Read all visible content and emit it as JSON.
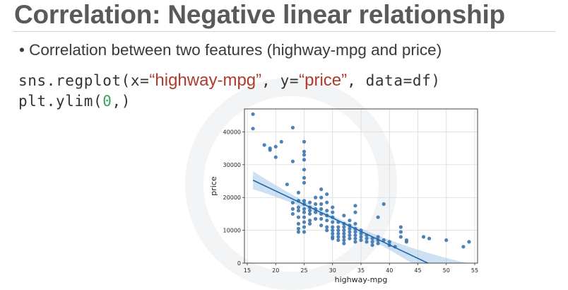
{
  "slide": {
    "title": "Correlation: Negative linear relationship",
    "bullet": "Correlation between two features (highway-mpg and price)",
    "code_line1": {
      "p1": "sns.regplot(x=",
      "s1": "“highway-mpg”",
      "p2": ", y=",
      "s2": "“price”",
      "p3": ", data=df)"
    },
    "code_line2": {
      "p1": "plt.ylim(",
      "n1": "0",
      "p2": ",)"
    }
  },
  "chart_data": {
    "type": "scatter",
    "xlabel": "highway-mpg",
    "ylabel": "price",
    "xlim": [
      14.5,
      55.5
    ],
    "ylim": [
      0,
      47000
    ],
    "xticks": [
      15,
      20,
      25,
      30,
      35,
      40,
      45,
      50,
      55
    ],
    "yticks": [
      0,
      10000,
      20000,
      30000,
      40000
    ],
    "grid": true,
    "point_color": "#3b75af",
    "line_color": "#2166ac",
    "band_color": "#a6c8e8",
    "points": [
      [
        16,
        45400
      ],
      [
        16,
        41000
      ],
      [
        18,
        36000
      ],
      [
        19,
        34500
      ],
      [
        19,
        35000
      ],
      [
        20,
        35500
      ],
      [
        20,
        32300
      ],
      [
        21,
        37000
      ],
      [
        22,
        24000
      ],
      [
        23,
        41300
      ],
      [
        23,
        31000
      ],
      [
        23,
        16500
      ],
      [
        23,
        18400
      ],
      [
        23,
        15000
      ],
      [
        24,
        21500
      ],
      [
        24,
        19000
      ],
      [
        24,
        17000
      ],
      [
        24,
        16000
      ],
      [
        24,
        14000
      ],
      [
        24,
        12000
      ],
      [
        24,
        10500
      ],
      [
        24,
        9500
      ],
      [
        25,
        37000
      ],
      [
        25,
        34000
      ],
      [
        25,
        33000
      ],
      [
        25,
        31500
      ],
      [
        25,
        28500
      ],
      [
        25,
        26000
      ],
      [
        25,
        24500
      ],
      [
        25,
        19000
      ],
      [
        25,
        18000
      ],
      [
        25,
        16500
      ],
      [
        25,
        15500
      ],
      [
        25,
        14000
      ],
      [
        25,
        12500
      ],
      [
        25,
        11000
      ],
      [
        25,
        9500
      ],
      [
        26,
        18500
      ],
      [
        26,
        17000
      ],
      [
        26,
        16000
      ],
      [
        26,
        15000
      ],
      [
        26,
        13000
      ],
      [
        26,
        12000
      ],
      [
        27,
        20000
      ],
      [
        27,
        18000
      ],
      [
        27,
        16500
      ],
      [
        27,
        15500
      ],
      [
        27,
        13500
      ],
      [
        28,
        22500
      ],
      [
        28,
        20000
      ],
      [
        28,
        18000
      ],
      [
        28,
        16500
      ],
      [
        28,
        15000
      ],
      [
        28,
        13500
      ],
      [
        28,
        11500
      ],
      [
        29,
        21000
      ],
      [
        29,
        18500
      ],
      [
        29,
        16000
      ],
      [
        29,
        14500
      ],
      [
        29,
        13000
      ],
      [
        29,
        11000
      ],
      [
        29,
        10000
      ],
      [
        30,
        17000
      ],
      [
        30,
        15500
      ],
      [
        30,
        14000
      ],
      [
        30,
        12500
      ],
      [
        30,
        11000
      ],
      [
        30,
        10000
      ],
      [
        30,
        9000
      ],
      [
        30,
        8000
      ],
      [
        30,
        7500
      ],
      [
        31,
        12500
      ],
      [
        31,
        11000
      ],
      [
        31,
        10000
      ],
      [
        31,
        9000
      ],
      [
        31,
        8000
      ],
      [
        31,
        7000
      ],
      [
        32,
        14500
      ],
      [
        32,
        12000
      ],
      [
        32,
        11000
      ],
      [
        32,
        10000
      ],
      [
        32,
        9000
      ],
      [
        32,
        8000
      ],
      [
        32,
        7000
      ],
      [
        32,
        6000
      ],
      [
        33,
        13000
      ],
      [
        33,
        11500
      ],
      [
        33,
        10500
      ],
      [
        33,
        9500
      ],
      [
        33,
        8500
      ],
      [
        33,
        7500
      ],
      [
        34,
        17500
      ],
      [
        34,
        15500
      ],
      [
        34,
        12000
      ],
      [
        34,
        10500
      ],
      [
        34,
        9500
      ],
      [
        34,
        8500
      ],
      [
        34,
        7500
      ],
      [
        34,
        6500
      ],
      [
        35,
        10000
      ],
      [
        35,
        9000
      ],
      [
        35,
        8000
      ],
      [
        35,
        7000
      ],
      [
        36,
        8500
      ],
      [
        36,
        7500
      ],
      [
        36,
        6500
      ],
      [
        37,
        7500
      ],
      [
        37,
        6500
      ],
      [
        37,
        5500
      ],
      [
        38,
        8000
      ],
      [
        38,
        7000
      ],
      [
        38,
        6000
      ],
      [
        38,
        14000
      ],
      [
        39,
        18000
      ],
      [
        39,
        7000
      ],
      [
        40,
        6500
      ],
      [
        40,
        5500
      ],
      [
        41,
        5000
      ],
      [
        42,
        11000
      ],
      [
        42,
        9500
      ],
      [
        42,
        8000
      ],
      [
        43,
        7000
      ],
      [
        43,
        6500
      ],
      [
        46,
        8000
      ],
      [
        47,
        7500
      ],
      [
        50,
        7000
      ],
      [
        53,
        5000
      ],
      [
        54,
        6500
      ]
    ],
    "regression": {
      "x_start": 16,
      "x_end": 54,
      "slope": -821.7,
      "intercept": 38423
    }
  }
}
